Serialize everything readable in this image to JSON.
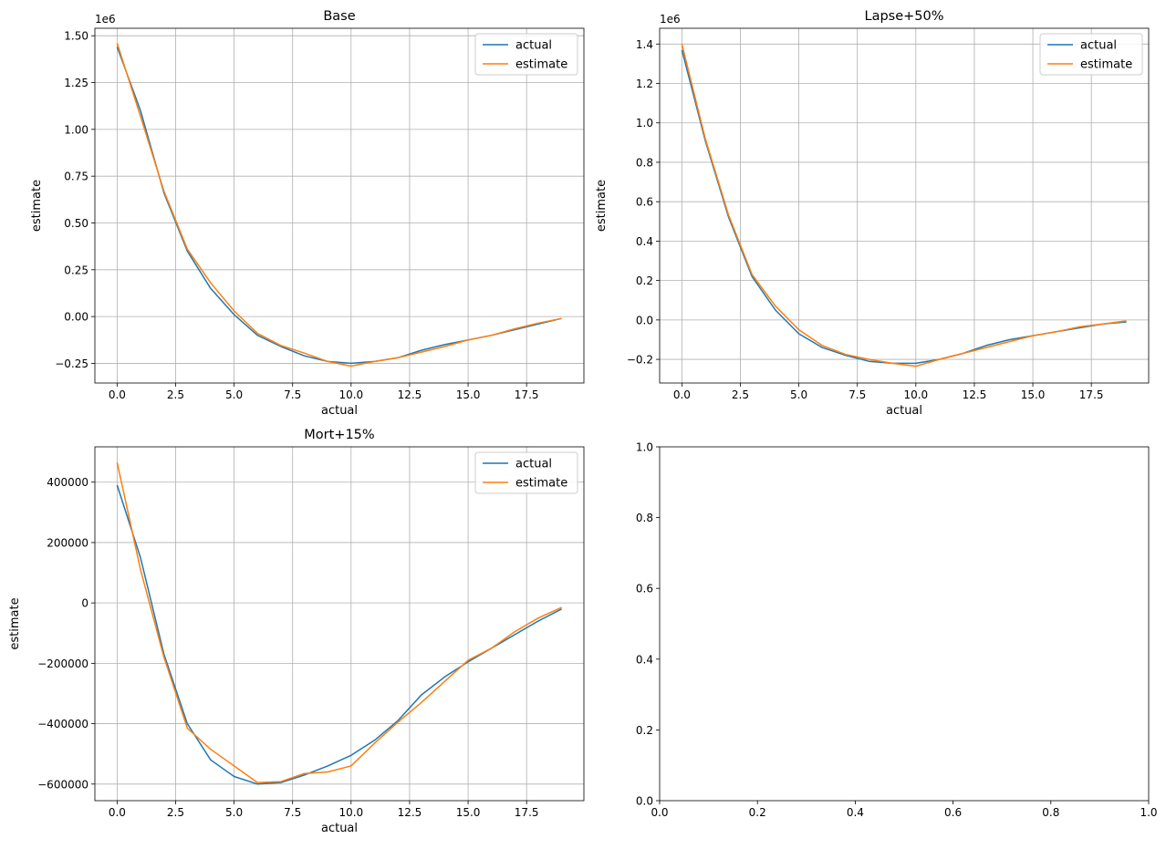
{
  "chart_data": [
    {
      "type": "line",
      "title": "Base",
      "xlabel": "actual",
      "ylabel": "estimate",
      "offset_text": "1e6",
      "xlim": [
        -0.95,
        19.95
      ],
      "ylim": [
        -0.355,
        1.54
      ],
      "xticks": [
        0,
        2.5,
        5,
        7.5,
        10,
        12.5,
        15,
        17.5
      ],
      "xtick_labels": [
        "0.0",
        "2.5",
        "5.0",
        "7.5",
        "10.0",
        "12.5",
        "15.0",
        "17.5"
      ],
      "yticks": [
        -0.25,
        0,
        0.25,
        0.5,
        0.75,
        1.0,
        1.25,
        1.5
      ],
      "ytick_labels": [
        "−0.25",
        "0.00",
        "0.25",
        "0.50",
        "0.75",
        "1.00",
        "1.25",
        "1.50"
      ],
      "grid": true,
      "legend_position": "top-right",
      "x": [
        0,
        1,
        2,
        3,
        4,
        5,
        6,
        7,
        8,
        9,
        10,
        11,
        12,
        13,
        14,
        15,
        16,
        17,
        18,
        19
      ],
      "series": [
        {
          "name": "actual",
          "color": "#1f77b4",
          "values": [
            1.44,
            1.1,
            0.66,
            0.35,
            0.15,
            0.01,
            -0.1,
            -0.16,
            -0.21,
            -0.24,
            -0.25,
            -0.24,
            -0.22,
            -0.18,
            -0.15,
            -0.125,
            -0.1,
            -0.07,
            -0.04,
            -0.01
          ]
        },
        {
          "name": "estimate",
          "color": "#ff7f0e",
          "values": [
            1.46,
            1.07,
            0.67,
            0.36,
            0.18,
            0.03,
            -0.09,
            -0.155,
            -0.195,
            -0.24,
            -0.265,
            -0.24,
            -0.22,
            -0.19,
            -0.16,
            -0.125,
            -0.1,
            -0.065,
            -0.035,
            -0.01
          ]
        }
      ]
    },
    {
      "type": "line",
      "title": "Lapse+50%",
      "xlabel": "actual",
      "ylabel": "estimate",
      "offset_text": "1e6",
      "xlim": [
        -0.95,
        19.95
      ],
      "ylim": [
        -0.32,
        1.48
      ],
      "xticks": [
        0,
        2.5,
        5,
        7.5,
        10,
        12.5,
        15,
        17.5
      ],
      "xtick_labels": [
        "0.0",
        "2.5",
        "5.0",
        "7.5",
        "10.0",
        "12.5",
        "15.0",
        "17.5"
      ],
      "yticks": [
        -0.2,
        0,
        0.2,
        0.4,
        0.6,
        0.8,
        1.0,
        1.2,
        1.4
      ],
      "ytick_labels": [
        "−0.2",
        "0.0",
        "0.2",
        "0.4",
        "0.6",
        "0.8",
        "1.0",
        "1.2",
        "1.4"
      ],
      "grid": true,
      "legend_position": "top-right",
      "x": [
        0,
        1,
        2,
        3,
        4,
        5,
        6,
        7,
        8,
        9,
        10,
        11,
        12,
        13,
        14,
        15,
        16,
        17,
        18,
        19
      ],
      "series": [
        {
          "name": "actual",
          "color": "#1f77b4",
          "values": [
            1.37,
            0.91,
            0.52,
            0.22,
            0.05,
            -0.07,
            -0.14,
            -0.18,
            -0.21,
            -0.22,
            -0.22,
            -0.2,
            -0.17,
            -0.13,
            -0.1,
            -0.08,
            -0.06,
            -0.04,
            -0.02,
            -0.01
          ]
        },
        {
          "name": "estimate",
          "color": "#ff7f0e",
          "values": [
            1.4,
            0.92,
            0.53,
            0.23,
            0.07,
            -0.05,
            -0.13,
            -0.175,
            -0.2,
            -0.22,
            -0.235,
            -0.2,
            -0.17,
            -0.14,
            -0.11,
            -0.08,
            -0.06,
            -0.035,
            -0.02,
            -0.005
          ]
        }
      ]
    },
    {
      "type": "line",
      "title": "Mort+15%",
      "xlabel": "actual",
      "ylabel": "estimate",
      "offset_text": "",
      "xlim": [
        -0.95,
        19.95
      ],
      "ylim": [
        -655000,
        517000
      ],
      "xticks": [
        0,
        2.5,
        5,
        7.5,
        10,
        12.5,
        15,
        17.5
      ],
      "xtick_labels": [
        "0.0",
        "2.5",
        "5.0",
        "7.5",
        "10.0",
        "12.5",
        "15.0",
        "17.5"
      ],
      "yticks": [
        -600000,
        -400000,
        -200000,
        0,
        200000,
        400000
      ],
      "ytick_labels": [
        "−600000",
        "−400000",
        "−200000",
        "0",
        "200000",
        "400000"
      ],
      "grid": true,
      "legend_position": "top-right",
      "x": [
        0,
        1,
        2,
        3,
        4,
        5,
        6,
        7,
        8,
        9,
        10,
        11,
        12,
        13,
        14,
        15,
        16,
        17,
        18,
        19
      ],
      "series": [
        {
          "name": "actual",
          "color": "#1f77b4",
          "values": [
            390000,
            150000,
            -170000,
            -400000,
            -520000,
            -575000,
            -600000,
            -595000,
            -570000,
            -540000,
            -505000,
            -455000,
            -390000,
            -305000,
            -245000,
            -195000,
            -150000,
            -105000,
            -60000,
            -20000
          ]
        },
        {
          "name": "estimate",
          "color": "#ff7f0e",
          "values": [
            465000,
            110000,
            -180000,
            -415000,
            -485000,
            -540000,
            -595000,
            -592000,
            -565000,
            -560000,
            -540000,
            -465000,
            -395000,
            -330000,
            -260000,
            -190000,
            -150000,
            -95000,
            -50000,
            -15000
          ]
        }
      ]
    },
    {
      "type": "line",
      "title": "",
      "xlabel": "",
      "ylabel": "",
      "offset_text": "",
      "xlim": [
        0,
        1
      ],
      "ylim": [
        0,
        1
      ],
      "xticks": [
        0,
        0.2,
        0.4,
        0.6,
        0.8,
        1.0
      ],
      "xtick_labels": [
        "0.0",
        "0.2",
        "0.4",
        "0.6",
        "0.8",
        "1.0"
      ],
      "yticks": [
        0,
        0.2,
        0.4,
        0.6,
        0.8,
        1.0
      ],
      "ytick_labels": [
        "0.0",
        "0.2",
        "0.4",
        "0.6",
        "0.8",
        "1.0"
      ],
      "grid": false,
      "legend_position": "",
      "x": [],
      "series": []
    }
  ]
}
